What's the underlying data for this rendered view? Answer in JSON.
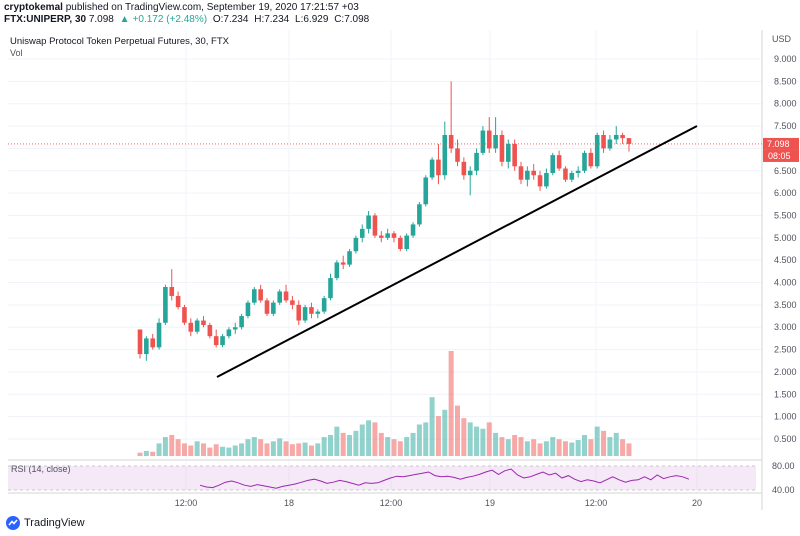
{
  "header": {
    "author": "cryptokemal",
    "published": "published on TradingView.com, September 19, 2020 17:21:57 +03",
    "symbol": "FTX:UNIPERP, 30",
    "last": "7.098",
    "change": "+0.172 (+2.48%)",
    "o": "O:7.234",
    "h": "H:7.234",
    "l": "L:6.929",
    "c": "C:7.098"
  },
  "legend": {
    "title": "Uniswap Protocol Token Perpetual Futures, 30, FTX",
    "vol": "Vol"
  },
  "price_axis": {
    "currency": "USD",
    "last_label": "7.098",
    "countdown": "08:05"
  },
  "rsi": {
    "label": "RSI (14, close)"
  },
  "footer": {
    "brand": "TradingView"
  },
  "colors": {
    "up": "#26a69a",
    "down": "#ef5350",
    "rsi": "#9c27b0",
    "rsi_band": "#e1bee7"
  },
  "chart_data": {
    "type": "candlestick",
    "x_ticks": [
      "12:00",
      "18",
      "12:00",
      "19",
      "12:00",
      "20"
    ],
    "y_ticks": [
      "0.500",
      "1.000",
      "1.500",
      "2.000",
      "2.500",
      "3.000",
      "3.500",
      "4.000",
      "4.500",
      "5.000",
      "5.500",
      "6.000",
      "6.500",
      "7.000",
      "7.500",
      "8.000",
      "8.500",
      "9.000"
    ],
    "ylim": [
      0,
      9.4
    ],
    "rsi_ticks": [
      "80.00",
      "40.00"
    ],
    "candles": [
      [
        2.95,
        2.95,
        2.3,
        2.4
      ],
      [
        2.4,
        2.8,
        2.25,
        2.75
      ],
      [
        2.75,
        2.85,
        2.5,
        2.55
      ],
      [
        2.55,
        3.2,
        2.5,
        3.1
      ],
      [
        3.1,
        3.95,
        3.05,
        3.9
      ],
      [
        3.9,
        4.3,
        3.6,
        3.7
      ],
      [
        3.7,
        3.8,
        3.4,
        3.45
      ],
      [
        3.45,
        3.5,
        3.05,
        3.1
      ],
      [
        3.1,
        3.2,
        2.8,
        2.9
      ],
      [
        2.9,
        3.2,
        2.85,
        3.15
      ],
      [
        3.15,
        3.25,
        3.0,
        3.05
      ],
      [
        3.05,
        3.1,
        2.75,
        2.8
      ],
      [
        2.8,
        2.95,
        2.55,
        2.6
      ],
      [
        2.6,
        2.85,
        2.55,
        2.8
      ],
      [
        2.8,
        3.0,
        2.75,
        2.95
      ],
      [
        2.95,
        3.1,
        2.85,
        3.0
      ],
      [
        3.0,
        3.3,
        2.95,
        3.25
      ],
      [
        3.25,
        3.6,
        3.2,
        3.55
      ],
      [
        3.55,
        3.9,
        3.5,
        3.85
      ],
      [
        3.85,
        3.95,
        3.55,
        3.6
      ],
      [
        3.6,
        3.65,
        3.25,
        3.3
      ],
      [
        3.3,
        3.6,
        3.25,
        3.55
      ],
      [
        3.55,
        3.85,
        3.5,
        3.8
      ],
      [
        3.8,
        3.95,
        3.55,
        3.6
      ],
      [
        3.6,
        3.7,
        3.4,
        3.5
      ],
      [
        3.5,
        3.6,
        3.05,
        3.15
      ],
      [
        3.15,
        3.5,
        3.1,
        3.45
      ],
      [
        3.45,
        3.55,
        3.2,
        3.3
      ],
      [
        3.3,
        3.4,
        3.2,
        3.35
      ],
      [
        3.35,
        3.7,
        3.3,
        3.65
      ],
      [
        3.65,
        4.2,
        3.6,
        4.1
      ],
      [
        4.1,
        4.5,
        4.05,
        4.45
      ],
      [
        4.45,
        4.6,
        4.3,
        4.4
      ],
      [
        4.4,
        4.75,
        4.35,
        4.7
      ],
      [
        4.7,
        5.05,
        4.65,
        5.0
      ],
      [
        5.0,
        5.3,
        4.9,
        5.2
      ],
      [
        5.2,
        5.6,
        5.1,
        5.5
      ],
      [
        5.5,
        5.55,
        5.0,
        5.05
      ],
      [
        5.05,
        5.15,
        4.9,
        5.0
      ],
      [
        5.0,
        5.2,
        4.95,
        5.1
      ],
      [
        5.1,
        5.15,
        4.9,
        5.0
      ],
      [
        5.0,
        5.05,
        4.7,
        4.75
      ],
      [
        4.75,
        5.1,
        4.7,
        5.05
      ],
      [
        5.05,
        5.35,
        5.0,
        5.3
      ],
      [
        5.3,
        5.8,
        5.25,
        5.75
      ],
      [
        5.75,
        6.4,
        5.7,
        6.35
      ],
      [
        6.35,
        6.8,
        6.3,
        6.75
      ],
      [
        6.75,
        7.1,
        6.2,
        6.4
      ],
      [
        6.4,
        7.6,
        6.3,
        7.3
      ],
      [
        7.3,
        8.5,
        6.9,
        7.0
      ],
      [
        7.0,
        7.2,
        6.6,
        6.7
      ],
      [
        6.7,
        6.8,
        6.3,
        6.4
      ],
      [
        6.4,
        6.6,
        5.95,
        6.5
      ],
      [
        6.5,
        7.0,
        6.4,
        6.9
      ],
      [
        6.9,
        7.5,
        6.85,
        7.4
      ],
      [
        7.4,
        7.7,
        6.9,
        7.0
      ],
      [
        7.0,
        7.7,
        6.9,
        7.3
      ],
      [
        7.3,
        7.4,
        6.6,
        6.7
      ],
      [
        6.7,
        7.2,
        6.55,
        7.1
      ],
      [
        7.1,
        7.2,
        6.5,
        6.6
      ],
      [
        6.6,
        6.7,
        6.2,
        6.3
      ],
      [
        6.3,
        6.6,
        6.15,
        6.5
      ],
      [
        6.5,
        6.65,
        6.3,
        6.4
      ],
      [
        6.4,
        6.5,
        6.05,
        6.15
      ],
      [
        6.15,
        6.55,
        6.1,
        6.45
      ],
      [
        6.45,
        6.9,
        6.4,
        6.85
      ],
      [
        6.85,
        6.95,
        6.5,
        6.55
      ],
      [
        6.55,
        6.6,
        6.25,
        6.3
      ],
      [
        6.3,
        6.5,
        6.25,
        6.45
      ],
      [
        6.45,
        6.6,
        6.35,
        6.5
      ],
      [
        6.5,
        6.95,
        6.45,
        6.9
      ],
      [
        6.9,
        7.0,
        6.55,
        6.6
      ],
      [
        6.6,
        7.35,
        6.55,
        7.3
      ],
      [
        7.3,
        7.4,
        6.9,
        7.0
      ],
      [
        7.0,
        7.3,
        6.95,
        7.2
      ],
      [
        7.2,
        7.5,
        7.1,
        7.3
      ],
      [
        7.3,
        7.35,
        7.1,
        7.23
      ],
      [
        7.23,
        7.23,
        6.93,
        7.1
      ]
    ],
    "volume_units": "relative",
    "volume": [
      0.08,
      0.12,
      0.1,
      0.3,
      0.45,
      0.5,
      0.4,
      0.3,
      0.25,
      0.35,
      0.3,
      0.2,
      0.28,
      0.22,
      0.2,
      0.25,
      0.3,
      0.4,
      0.45,
      0.4,
      0.3,
      0.35,
      0.42,
      0.35,
      0.28,
      0.3,
      0.32,
      0.25,
      0.3,
      0.45,
      0.5,
      0.7,
      0.55,
      0.5,
      0.6,
      0.75,
      0.85,
      0.8,
      0.55,
      0.45,
      0.4,
      0.35,
      0.45,
      0.55,
      0.75,
      0.8,
      1.4,
      0.95,
      1.1,
      2.5,
      1.2,
      0.9,
      0.8,
      0.7,
      0.65,
      0.8,
      0.55,
      0.45,
      0.4,
      0.5,
      0.45,
      0.35,
      0.4,
      0.3,
      0.35,
      0.45,
      0.4,
      0.35,
      0.32,
      0.38,
      0.5,
      0.4,
      0.7,
      0.6,
      0.45,
      0.55,
      0.4,
      0.3
    ],
    "rsi_values": [
      48,
      45,
      44,
      48,
      53,
      55,
      52,
      48,
      46,
      49,
      47,
      45,
      43,
      46,
      48,
      50,
      53,
      56,
      58,
      55,
      51,
      53,
      56,
      54,
      51,
      48,
      52,
      51,
      52,
      56,
      60,
      63,
      62,
      64,
      66,
      68,
      70,
      64,
      62,
      63,
      61,
      58,
      61,
      63,
      66,
      70,
      73,
      66,
      72,
      75,
      65,
      60,
      62,
      66,
      70,
      65,
      68,
      60,
      64,
      58,
      54,
      57,
      55,
      52,
      57,
      62,
      57,
      53,
      56,
      57,
      62,
      57,
      65,
      59,
      62,
      64,
      62,
      58
    ]
  }
}
